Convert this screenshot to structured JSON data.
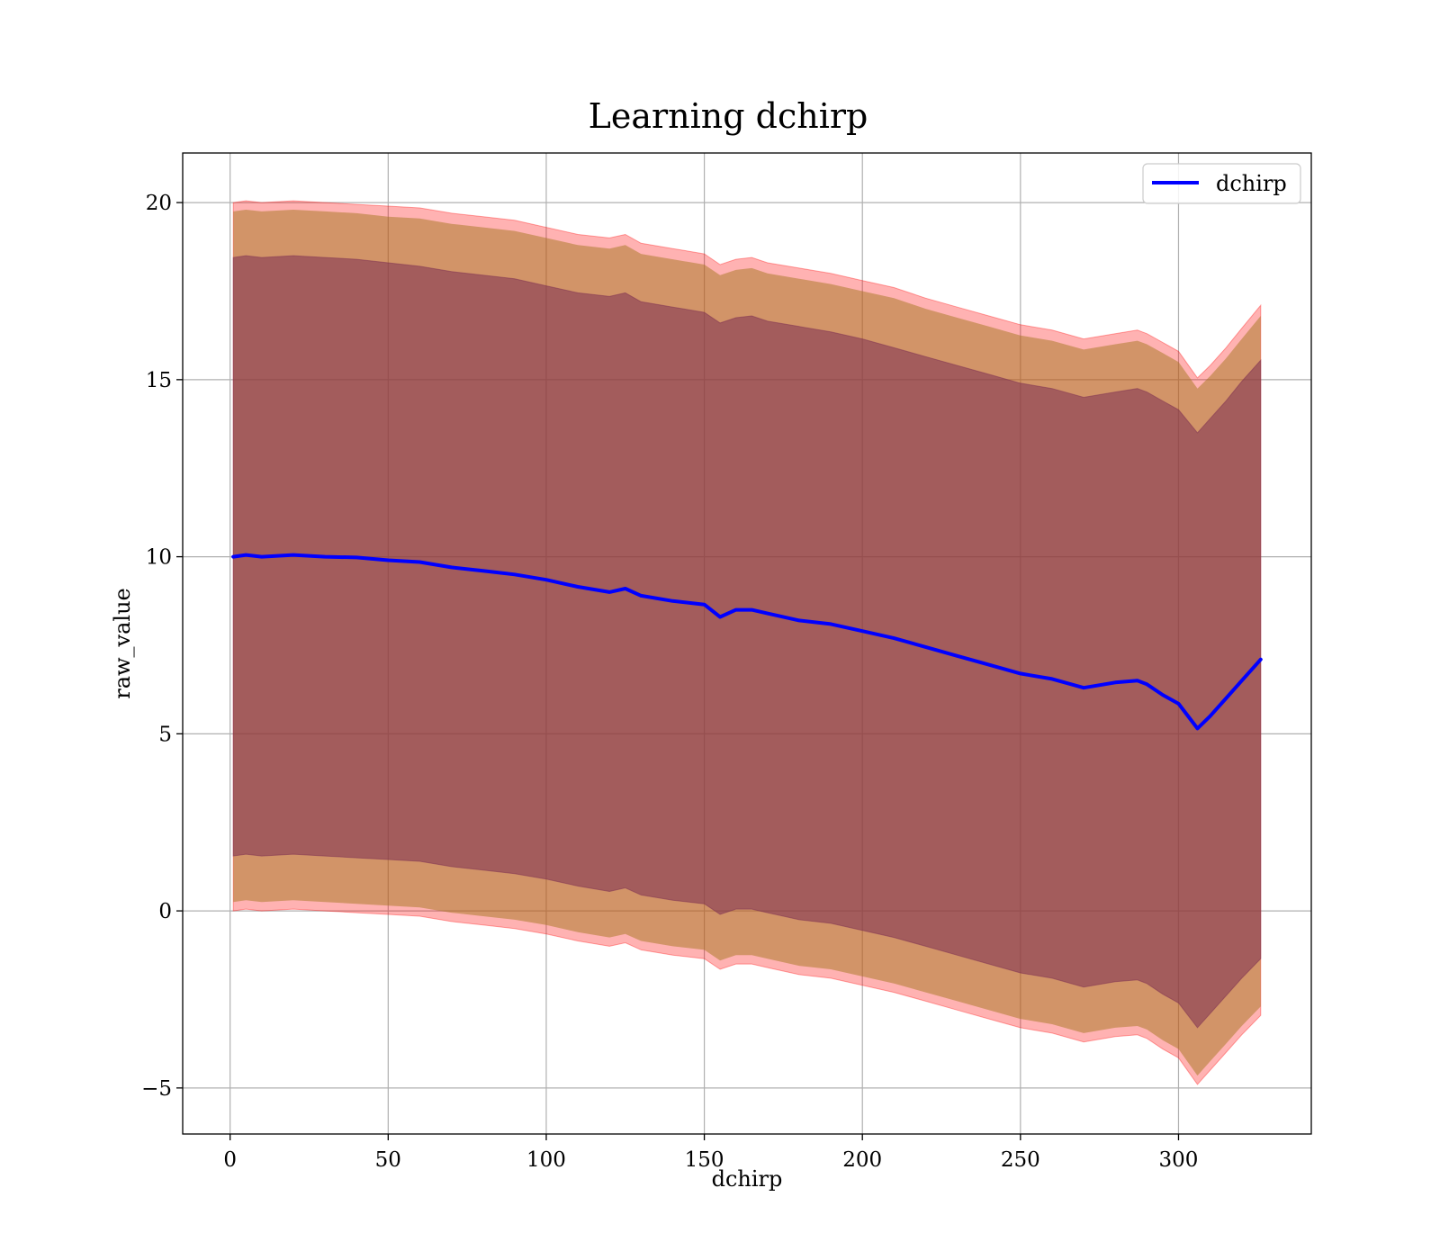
{
  "chart_data": {
    "type": "line",
    "title": "Learning dchirp",
    "xlabel": "dchirp",
    "ylabel": "raw_value",
    "xlim": [
      -15,
      342
    ],
    "ylim": [
      -6.3,
      21.4
    ],
    "xticks": [
      0,
      50,
      100,
      150,
      200,
      250,
      300
    ],
    "yticks": [
      -5,
      0,
      5,
      10,
      15,
      20
    ],
    "ytick_labels": [
      "−5",
      "0",
      "5",
      "10",
      "15",
      "20"
    ],
    "grid": true,
    "legend_position": "top-right",
    "colors": {
      "line": "#0000ff",
      "band_outer": "#ff0000",
      "band_middle": "#a6761d",
      "band_inner": "#7b2d52"
    },
    "series": [
      {
        "name": "dchirp",
        "x": [
          1,
          5,
          10,
          20,
          30,
          40,
          50,
          60,
          70,
          80,
          90,
          100,
          110,
          120,
          125,
          130,
          140,
          150,
          155,
          160,
          165,
          170,
          180,
          190,
          200,
          210,
          220,
          230,
          240,
          250,
          260,
          270,
          280,
          287,
          290,
          295,
          300,
          306,
          310,
          315,
          320,
          326
        ],
        "values": [
          10.0,
          10.05,
          10.0,
          10.05,
          10.0,
          9.98,
          9.9,
          9.85,
          9.7,
          9.6,
          9.5,
          9.35,
          9.15,
          9.0,
          9.1,
          8.9,
          8.75,
          8.65,
          8.3,
          8.5,
          8.5,
          8.4,
          8.2,
          8.1,
          7.9,
          7.7,
          7.45,
          7.2,
          6.95,
          6.7,
          6.55,
          6.3,
          6.45,
          6.5,
          6.4,
          6.1,
          5.85,
          5.15,
          5.5,
          6.0,
          6.5,
          7.1
        ]
      }
    ],
    "bands": {
      "outer_upper": [
        20.0,
        20.05,
        20.0,
        20.05,
        20.0,
        19.95,
        19.9,
        19.85,
        19.7,
        19.6,
        19.5,
        19.3,
        19.1,
        19.0,
        19.1,
        18.85,
        18.7,
        18.55,
        18.25,
        18.4,
        18.45,
        18.3,
        18.15,
        18.0,
        17.8,
        17.6,
        17.3,
        17.05,
        16.8,
        16.55,
        16.4,
        16.15,
        16.3,
        16.4,
        16.3,
        16.05,
        15.8,
        15.05,
        15.4,
        15.9,
        16.45,
        17.1
      ],
      "outer_lower": [
        0.0,
        0.05,
        0.0,
        0.05,
        0.0,
        -0.05,
        -0.1,
        -0.15,
        -0.3,
        -0.4,
        -0.5,
        -0.65,
        -0.85,
        -1.0,
        -0.9,
        -1.1,
        -1.25,
        -1.35,
        -1.65,
        -1.5,
        -1.5,
        -1.6,
        -1.8,
        -1.9,
        -2.1,
        -2.3,
        -2.55,
        -2.8,
        -3.05,
        -3.3,
        -3.45,
        -3.7,
        -3.55,
        -3.5,
        -3.6,
        -3.9,
        -4.15,
        -4.9,
        -4.5,
        -4.0,
        -3.5,
        -2.95
      ],
      "middle_upper": [
        19.75,
        19.8,
        19.75,
        19.8,
        19.75,
        19.7,
        19.6,
        19.55,
        19.4,
        19.3,
        19.2,
        19.0,
        18.8,
        18.7,
        18.8,
        18.55,
        18.4,
        18.25,
        17.95,
        18.1,
        18.15,
        18.0,
        17.85,
        17.7,
        17.5,
        17.3,
        17.0,
        16.75,
        16.5,
        16.25,
        16.1,
        15.85,
        16.0,
        16.1,
        16.0,
        15.75,
        15.5,
        14.75,
        15.1,
        15.6,
        16.15,
        16.8
      ],
      "middle_lower": [
        0.25,
        0.3,
        0.25,
        0.3,
        0.25,
        0.2,
        0.15,
        0.1,
        -0.05,
        -0.15,
        -0.25,
        -0.4,
        -0.6,
        -0.75,
        -0.65,
        -0.85,
        -1.0,
        -1.1,
        -1.4,
        -1.25,
        -1.25,
        -1.35,
        -1.55,
        -1.65,
        -1.85,
        -2.05,
        -2.3,
        -2.55,
        -2.8,
        -3.05,
        -3.2,
        -3.45,
        -3.3,
        -3.25,
        -3.35,
        -3.65,
        -3.9,
        -4.65,
        -4.25,
        -3.75,
        -3.25,
        -2.7
      ],
      "inner_upper": [
        18.45,
        18.5,
        18.45,
        18.5,
        18.45,
        18.4,
        18.3,
        18.2,
        18.05,
        17.95,
        17.85,
        17.65,
        17.45,
        17.35,
        17.45,
        17.2,
        17.05,
        16.9,
        16.6,
        16.75,
        16.8,
        16.65,
        16.5,
        16.35,
        16.15,
        15.9,
        15.65,
        15.4,
        15.15,
        14.9,
        14.75,
        14.5,
        14.65,
        14.75,
        14.65,
        14.4,
        14.15,
        13.5,
        13.9,
        14.4,
        14.95,
        15.55
      ],
      "inner_lower": [
        1.55,
        1.6,
        1.55,
        1.6,
        1.55,
        1.5,
        1.45,
        1.4,
        1.25,
        1.15,
        1.05,
        0.9,
        0.7,
        0.55,
        0.65,
        0.45,
        0.3,
        0.2,
        -0.1,
        0.05,
        0.05,
        -0.05,
        -0.25,
        -0.35,
        -0.55,
        -0.75,
        -1.0,
        -1.25,
        -1.5,
        -1.75,
        -1.9,
        -2.15,
        -2.0,
        -1.95,
        -2.05,
        -2.35,
        -2.6,
        -3.3,
        -2.9,
        -2.4,
        -1.9,
        -1.35
      ]
    }
  }
}
